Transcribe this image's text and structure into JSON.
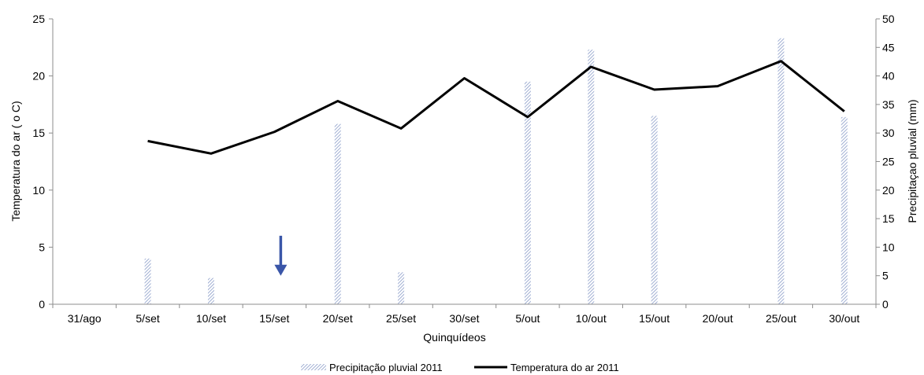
{
  "chart_data": {
    "type": "bar+line",
    "categories": [
      "31/ago",
      "5/set",
      "10/set",
      "15/set",
      "20/set",
      "25/set",
      "30/set",
      "5/out",
      "10/out",
      "15/out",
      "20/out",
      "25/out",
      "30/out"
    ],
    "series": [
      {
        "name": "Precipitação pluvial 2011",
        "type": "bar",
        "axis": "right",
        "color": "#8a9cc8",
        "values": [
          null,
          8,
          4.6,
          null,
          31.6,
          5.6,
          null,
          39,
          44.6,
          33,
          null,
          46.6,
          32.8
        ]
      },
      {
        "name": "Temperatura do ar 2011",
        "type": "line",
        "axis": "left",
        "color": "#000000",
        "values": [
          null,
          14.3,
          13.2,
          15.1,
          17.8,
          15.4,
          19.8,
          16.4,
          20.8,
          18.8,
          19.1,
          21.3,
          16.9
        ]
      }
    ],
    "xlabel": "Quinquídeos",
    "ylabel_left": "Temperatura do ar ( o C)",
    "ylabel_right": "Precipitaçao pluvial (mm)",
    "ylim_left": [
      0,
      25
    ],
    "yticks_left": [
      0,
      5,
      10,
      15,
      20,
      25
    ],
    "ylim_right": [
      0,
      50
    ],
    "yticks_right": [
      0,
      5,
      10,
      15,
      20,
      25,
      30,
      35,
      40,
      45,
      50
    ],
    "grid": false,
    "legend_position": "bottom",
    "annotation": {
      "type": "arrow-down",
      "color": "#3a56a8",
      "x_category": "15/set",
      "offset": 0.1,
      "y_top": 6,
      "y_bottom": 2.5
    }
  }
}
